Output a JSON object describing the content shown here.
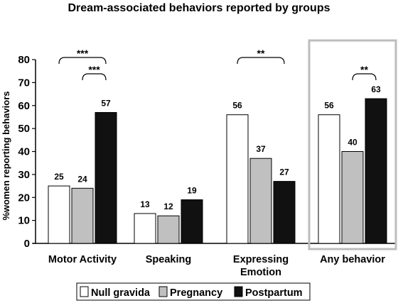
{
  "chart_data": {
    "type": "bar",
    "title": "Dream-associated behaviors reported by groups",
    "ylabel": "%women reporting behaviors",
    "xlabel": "",
    "ylim": [
      0,
      80
    ],
    "yticks": [
      "0",
      "10",
      "20",
      "30",
      "40",
      "50",
      "60",
      "70",
      "80"
    ],
    "categories": [
      "Motor Activity",
      "Speaking",
      "Expressing\nEmotion",
      "Any behavior"
    ],
    "series": [
      {
        "name": "Null gravida",
        "color": "#ffffff",
        "values": [
          25,
          13,
          56,
          56
        ],
        "labels": [
          "25",
          "13",
          "56",
          "56"
        ]
      },
      {
        "name": "Pregnancy",
        "color": "#c0c0c0",
        "values": [
          24,
          12,
          37,
          40
        ],
        "labels": [
          "24",
          "12",
          "37",
          "40"
        ]
      },
      {
        "name": "Postpartum",
        "color": "#111111",
        "values": [
          57,
          19,
          27,
          63
        ],
        "labels": [
          "57",
          "19",
          "27",
          "63"
        ]
      }
    ],
    "annotations": [
      {
        "category": 0,
        "from_series": 0,
        "to_series": 2,
        "text": "***"
      },
      {
        "category": 0,
        "from_series": 1,
        "to_series": 2,
        "text": "***"
      },
      {
        "category": 2,
        "from_series": 0,
        "to_series": 2,
        "text": "**"
      },
      {
        "category": 3,
        "from_series": 1,
        "to_series": 2,
        "text": "**"
      }
    ],
    "highlight_category": 3,
    "grid": false,
    "legend_position": "bottom"
  }
}
